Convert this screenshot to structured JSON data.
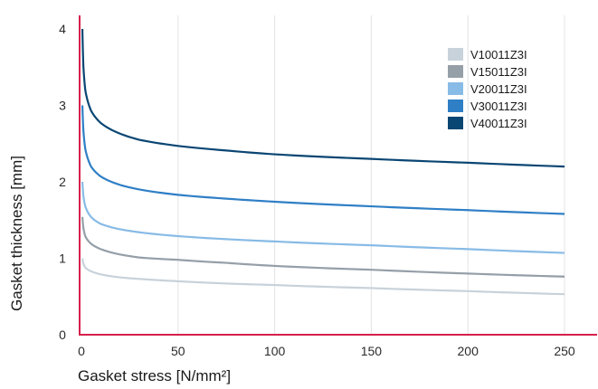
{
  "chart_data": {
    "type": "line",
    "title": "",
    "xlabel": "Gasket stress [N/mm²]",
    "ylabel": "Gasket thickness [mm]",
    "xlim": [
      0,
      250
    ],
    "ylim": [
      0,
      4
    ],
    "xticks": [
      0,
      50,
      100,
      150,
      200,
      250
    ],
    "yticks": [
      0,
      1,
      2,
      3,
      4
    ],
    "xtick_labels": [
      "0",
      "50",
      "100",
      "150",
      "200",
      "250"
    ],
    "ytick_labels": [
      "0",
      "1",
      "2",
      "3",
      "4"
    ],
    "grid": "vertical",
    "legend_position": "top-right",
    "axis_color": "#d6204b",
    "grid_color": "#e3e3e3",
    "x": [
      0.5,
      1,
      2,
      5,
      10,
      20,
      30,
      50,
      75,
      100,
      150,
      200,
      250
    ],
    "series": [
      {
        "name": "V10011Z3I",
        "color": "#c8d2da",
        "values": [
          1.0,
          0.93,
          0.88,
          0.83,
          0.79,
          0.75,
          0.73,
          0.7,
          0.67,
          0.65,
          0.61,
          0.57,
          0.53
        ]
      },
      {
        "name": "V15011Z3I",
        "color": "#959fa8",
        "values": [
          1.54,
          1.4,
          1.29,
          1.19,
          1.12,
          1.05,
          1.01,
          0.98,
          0.94,
          0.9,
          0.85,
          0.8,
          0.76
        ]
      },
      {
        "name": "V20011Z3I",
        "color": "#88bbe6",
        "values": [
          2.0,
          1.82,
          1.68,
          1.54,
          1.45,
          1.38,
          1.34,
          1.29,
          1.25,
          1.22,
          1.17,
          1.12,
          1.07
        ]
      },
      {
        "name": "V30011Z3I",
        "color": "#2f7fc6",
        "values": [
          3.0,
          2.68,
          2.43,
          2.2,
          2.07,
          1.96,
          1.9,
          1.83,
          1.78,
          1.74,
          1.68,
          1.63,
          1.58
        ]
      },
      {
        "name": "V40011Z3I",
        "color": "#0a4673",
        "values": [
          4.0,
          3.52,
          3.2,
          2.93,
          2.77,
          2.63,
          2.55,
          2.47,
          2.41,
          2.36,
          2.3,
          2.25,
          2.2
        ]
      }
    ]
  }
}
